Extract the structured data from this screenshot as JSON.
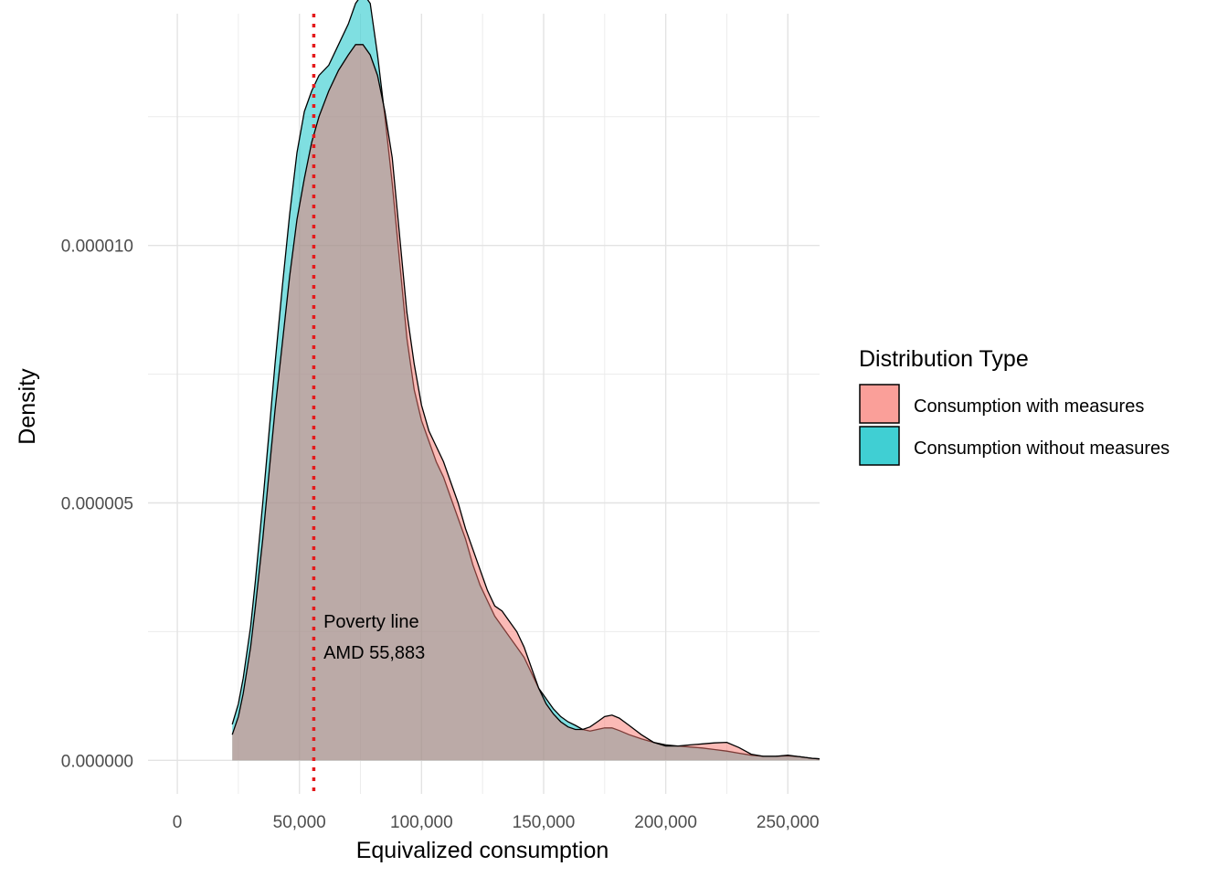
{
  "chart_data": {
    "type": "area",
    "xlabel": "Equivalized consumption",
    "ylabel": "Density",
    "xlim": [
      -12000,
      263000
    ],
    "ylim": [
      -6.5e-07,
      1.45e-05
    ],
    "x_ticks": [
      0,
      50000,
      100000,
      150000,
      200000,
      250000
    ],
    "x_tick_labels": [
      "0",
      "50,000",
      "100,000",
      "150,000",
      "200,000",
      "250,000"
    ],
    "y_ticks": [
      0,
      5e-06,
      1e-05
    ],
    "y_tick_labels": [
      "0.000000",
      "0.000005",
      "0.000010"
    ],
    "y_minor_ticks": [
      2.5e-06,
      7.5e-06,
      1.25e-05
    ],
    "grid": true,
    "legend": {
      "title": "Distribution Type",
      "placement": "right"
    },
    "series": [
      {
        "name": "Consumption with measures",
        "color": "#F8766D",
        "x": [
          22500,
          25000,
          27000,
          30000,
          32000,
          35000,
          38000,
          40000,
          43000,
          46000,
          49000,
          52000,
          55000,
          58000,
          62000,
          66000,
          70000,
          73000,
          76000,
          79000,
          82000,
          85000,
          88000,
          91000,
          94000,
          97000,
          100000,
          103000,
          106000,
          109000,
          112000,
          115000,
          118000,
          121000,
          124000,
          127000,
          130000,
          133000,
          136000,
          139000,
          142000,
          145000,
          148000,
          151000,
          154000,
          157000,
          160000,
          163000,
          166000,
          169000,
          172000,
          175000,
          178000,
          181000,
          185000,
          190000,
          195000,
          200000,
          205000,
          210000,
          215000,
          220000,
          225000,
          230000,
          235000,
          240000,
          245000,
          250000,
          255000,
          260000,
          263000
        ],
        "values": [
          5e-07,
          8.5e-07,
          1.3e-06,
          2.2e-06,
          3e-06,
          4.3e-06,
          5.8e-06,
          6.8e-06,
          8.1e-06,
          9.4e-06,
          1.05e-05,
          1.13e-05,
          1.2e-05,
          1.25e-05,
          1.3e-05,
          1.34e-05,
          1.37e-05,
          1.39e-05,
          1.39e-05,
          1.37e-05,
          1.33e-05,
          1.26e-05,
          1.17e-05,
          1.02e-05,
          8.7e-06,
          7.7e-06,
          6.9e-06,
          6.4e-06,
          6.1e-06,
          5.8e-06,
          5.4e-06,
          5e-06,
          4.5e-06,
          4.1e-06,
          3.7e-06,
          3.3e-06,
          3e-06,
          2.9e-06,
          2.7e-06,
          2.5e-06,
          2.2e-06,
          1.8e-06,
          1.4e-06,
          1.1e-06,
          9e-07,
          7.5e-07,
          6.5e-07,
          6e-07,
          6e-07,
          6.5e-07,
          7.5e-07,
          8.5e-07,
          8.8e-07,
          8.2e-07,
          6.8e-07,
          5e-07,
          3.5e-07,
          2.8e-07,
          2.8e-07,
          3e-07,
          3.2e-07,
          3.4e-07,
          3.5e-07,
          2.5e-07,
          1.2e-07,
          8e-08,
          8e-08,
          1e-07,
          7e-08,
          4e-08,
          3e-08
        ]
      },
      {
        "name": "Consumption without measures",
        "color": "#00BFC4",
        "x": [
          22500,
          25000,
          27000,
          30000,
          32000,
          35000,
          38000,
          40000,
          43000,
          46000,
          49000,
          52000,
          55000,
          58000,
          62000,
          66000,
          70000,
          73000,
          76000,
          79000,
          82000,
          85000,
          88000,
          91000,
          94000,
          97000,
          100000,
          103000,
          106000,
          109000,
          112000,
          115000,
          118000,
          121000,
          124000,
          127000,
          130000,
          133000,
          136000,
          139000,
          142000,
          145000,
          148000,
          151000,
          154000,
          157000,
          160000,
          163000,
          166000,
          169000,
          172000,
          175000,
          178000,
          181000,
          185000,
          190000,
          195000,
          200000,
          205000,
          210000,
          215000,
          220000,
          225000,
          230000,
          235000,
          240000,
          245000,
          250000,
          255000,
          260000,
          263000
        ],
        "values": [
          7e-07,
          1.1e-06,
          1.6e-06,
          2.6e-06,
          3.5e-06,
          5e-06,
          6.6e-06,
          7.7e-06,
          9.2e-06,
          1.06e-05,
          1.18e-05,
          1.26e-05,
          1.3e-05,
          1.33e-05,
          1.35e-05,
          1.39e-05,
          1.43e-05,
          1.47e-05,
          1.49e-05,
          1.47e-05,
          1.37e-05,
          1.25e-05,
          1.12e-05,
          9.7e-06,
          8.2e-06,
          7.2e-06,
          6.6e-06,
          6.2e-06,
          5.8e-06,
          5.5e-06,
          5.1e-06,
          4.7e-06,
          4.3e-06,
          3.8e-06,
          3.4e-06,
          3.1e-06,
          2.8e-06,
          2.6e-06,
          2.4e-06,
          2.2e-06,
          2e-06,
          1.7e-06,
          1.4e-06,
          1.2e-06,
          1e-06,
          8.5e-07,
          7.5e-07,
          6.8e-07,
          6e-07,
          5.7e-07,
          6e-07,
          6.3e-07,
          6.3e-07,
          5.8e-07,
          5e-07,
          4.2e-07,
          3.5e-07,
          3e-07,
          2.8e-07,
          2.6e-07,
          2.4e-07,
          2.1e-07,
          1.8e-07,
          1.4e-07,
          1e-07,
          8e-08,
          8e-08,
          9e-08,
          7e-08,
          4e-08,
          3e-08
        ]
      }
    ],
    "reference_line": {
      "x": 55883,
      "color": "#E41A1C",
      "style": "dotted"
    },
    "annotation": {
      "x": 58000,
      "lines": [
        "Poverty line",
        "AMD 55,883"
      ]
    }
  }
}
